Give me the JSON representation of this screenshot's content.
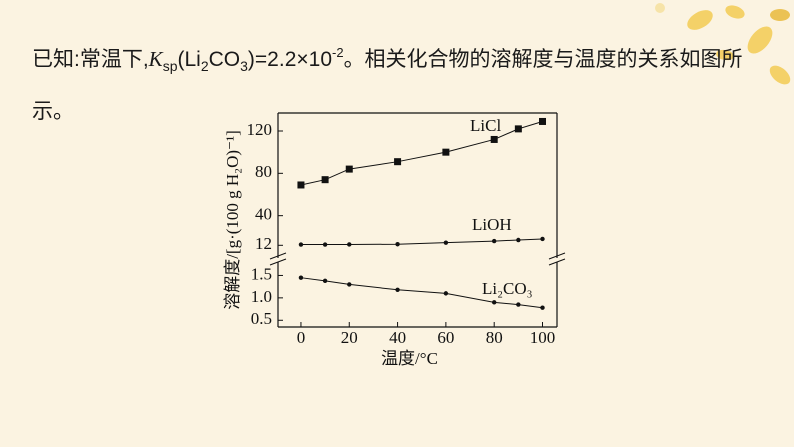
{
  "intro": [
    "已知:常温下,",
    "K",
    "sp",
    "(Li",
    "2",
    "CO",
    "3",
    ")=2.2×10",
    "-2",
    "。相关化合物的溶解度与温度的关系如图所示。"
  ],
  "chart_data": [
    {
      "type": "line",
      "ylabel": "溶解度/[g·(100 g H₂O)⁻¹]",
      "x": [
        0,
        10,
        20,
        40,
        60,
        80,
        90,
        100
      ],
      "xlim": [
        -9.5,
        106
      ],
      "ylim": [
        0,
        137
      ],
      "yticks": [
        12,
        40,
        80,
        120
      ],
      "series": [
        {
          "name": "LiCl",
          "color": "#111111",
          "marker": "square",
          "values": [
            69,
            74,
            84,
            91,
            100,
            112,
            122,
            129
          ]
        },
        {
          "name": "LiOH",
          "color": "#111111",
          "marker": "dot",
          "values": [
            12.7,
            12.7,
            12.8,
            13,
            14.5,
            16,
            17,
            18
          ]
        }
      ]
    },
    {
      "type": "line",
      "xlabel": "温度/°C",
      "x": [
        0,
        10,
        20,
        40,
        60,
        80,
        90,
        100
      ],
      "xlim": [
        -9.5,
        106
      ],
      "xticks": [
        0,
        20,
        40,
        60,
        80,
        100
      ],
      "ylim": [
        0.35,
        1.8
      ],
      "yticks": [
        {
          "value": 0.5,
          "label": "0.5"
        },
        {
          "value": 1,
          "label": "1.0"
        },
        {
          "value": 1.5,
          "label": "1.5"
        }
      ],
      "series": [
        {
          "name": "Li₂CO₃",
          "color": "#111111",
          "marker": "dot",
          "values": [
            1.45,
            1.38,
            1.3,
            1.18,
            1.1,
            0.9,
            0.85,
            0.78
          ]
        }
      ]
    }
  ]
}
